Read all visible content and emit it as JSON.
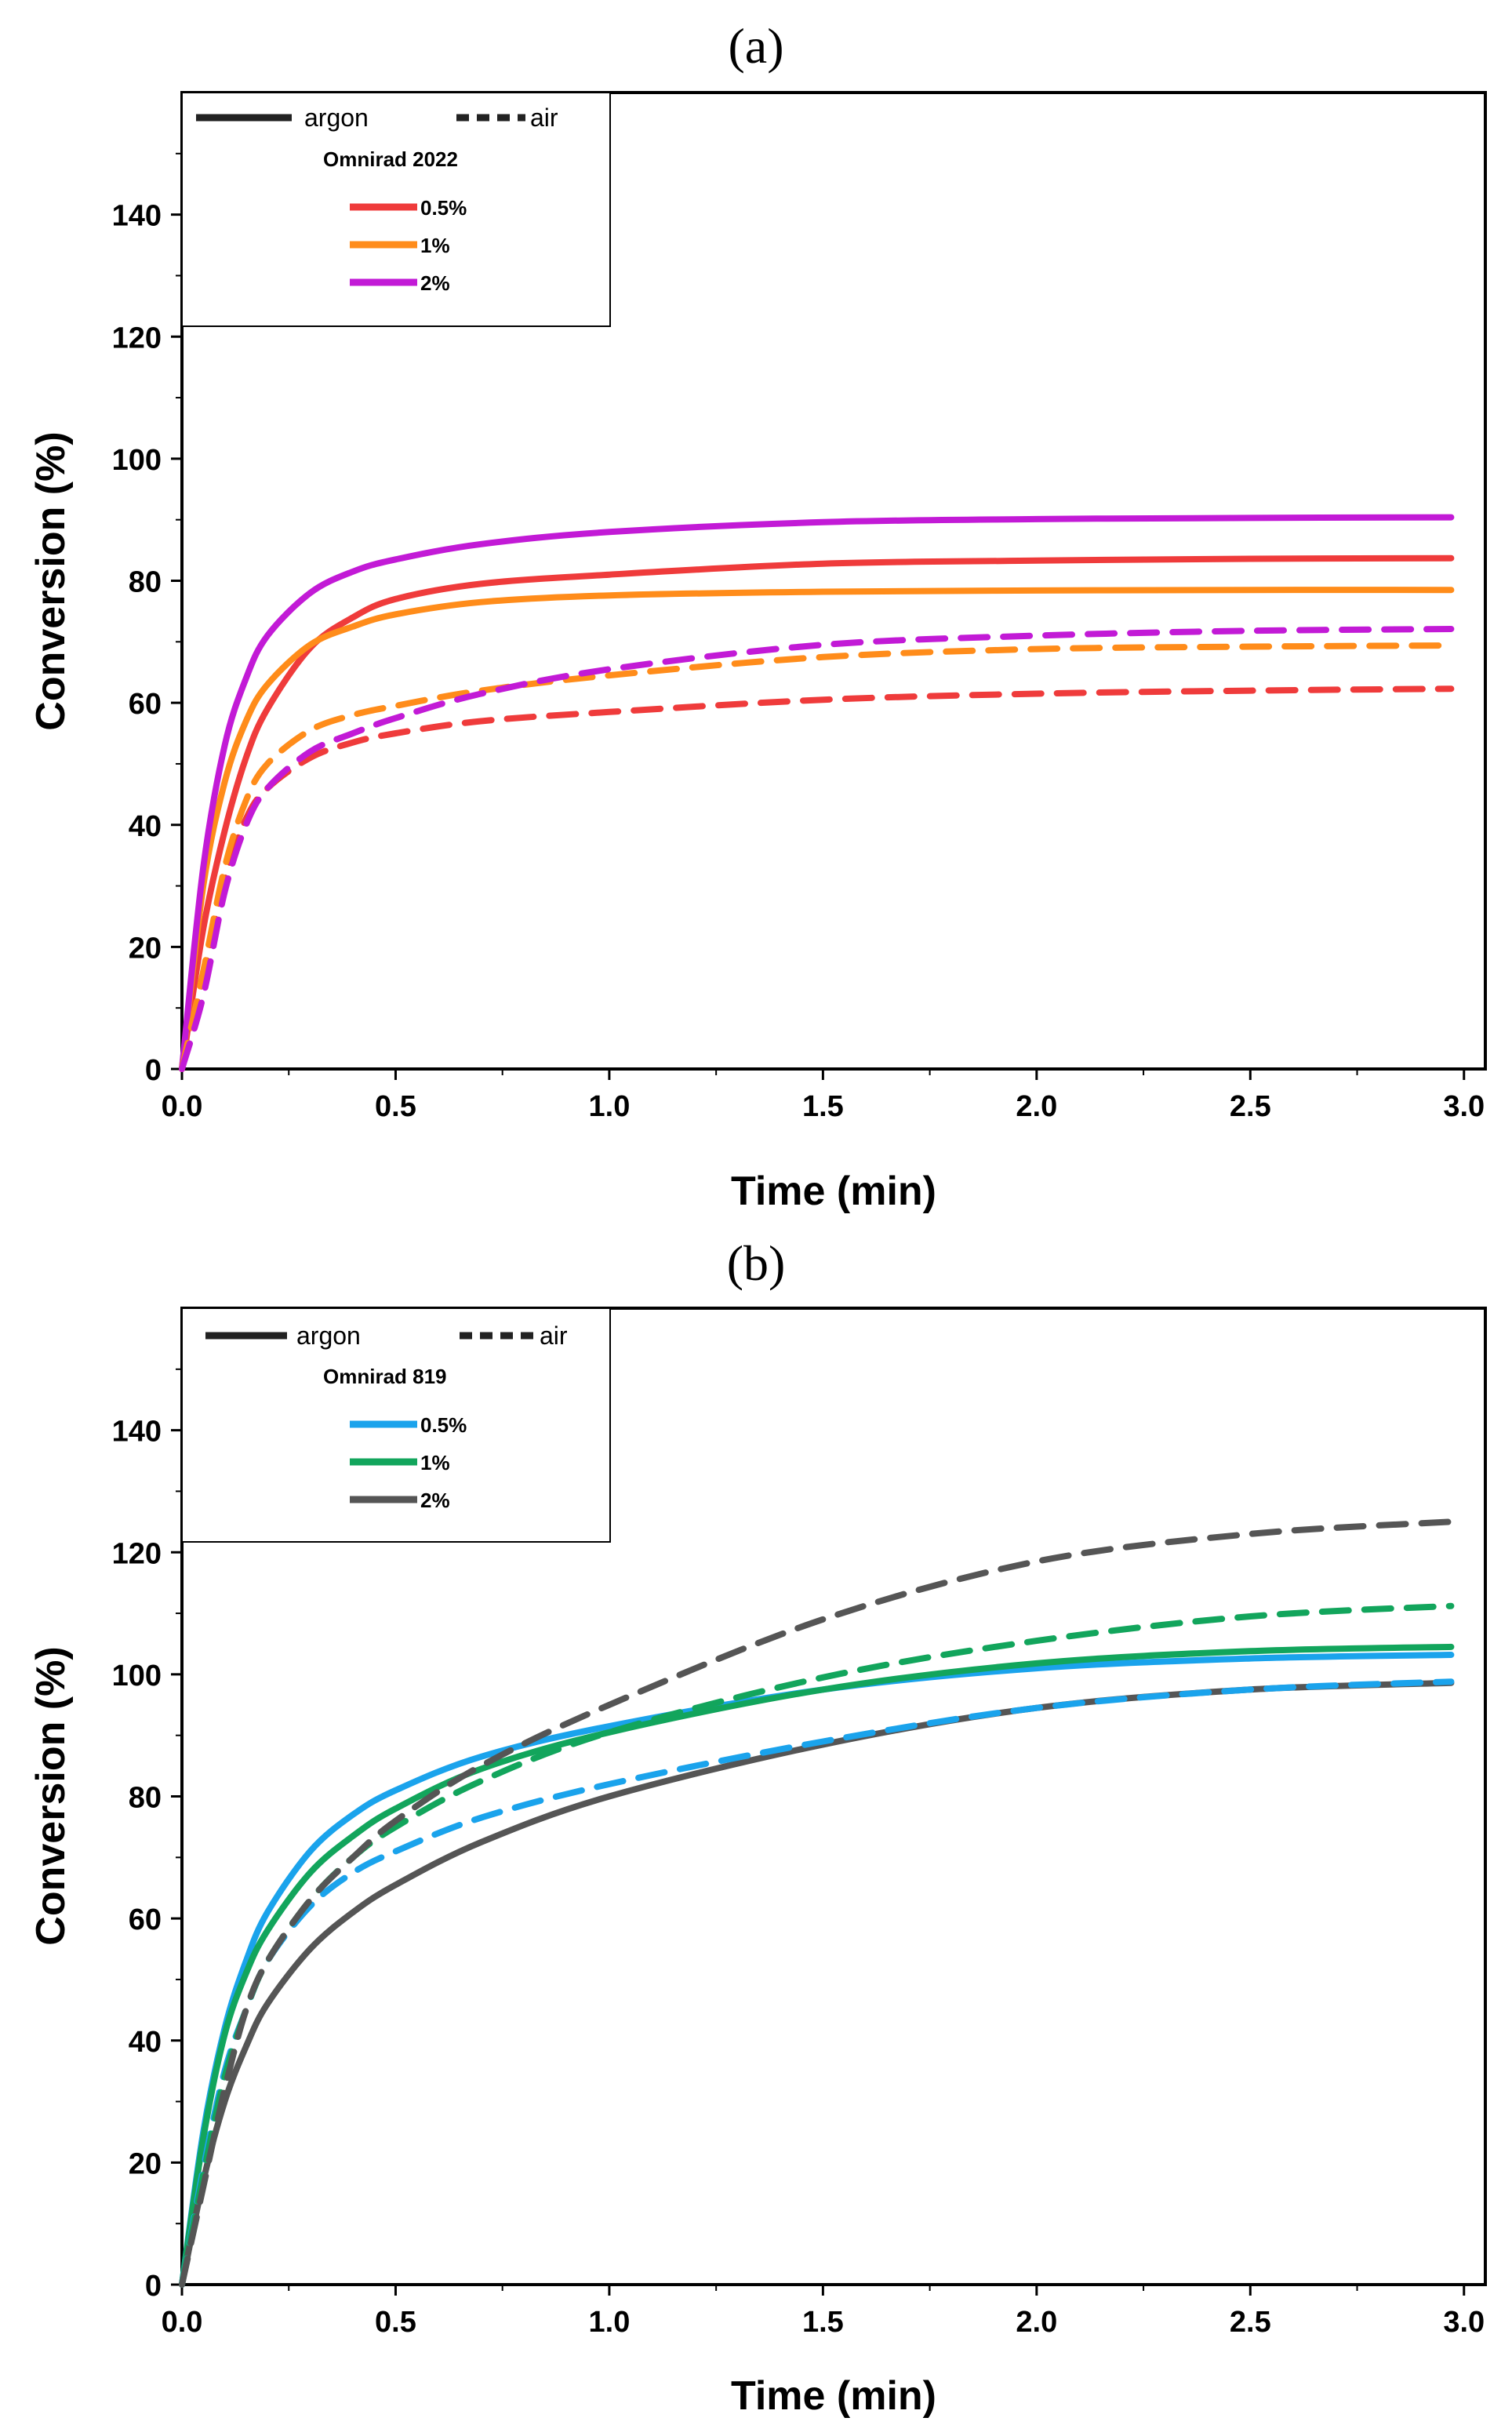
{
  "chart_data": [
    {
      "type": "line",
      "panel_label": "(a)",
      "xlabel": "Time (min)",
      "ylabel": "Conversion (%)",
      "xlim": [
        0.0,
        3.05
      ],
      "ylim": [
        0,
        160
      ],
      "xticks": [
        0.0,
        0.5,
        1.0,
        1.5,
        2.0,
        2.5,
        3.0
      ],
      "xtick_labels": [
        "0.0",
        "0.5",
        "1.0",
        "1.5",
        "2.0",
        "2.5",
        "3.0"
      ],
      "yticks": [
        0,
        20,
        40,
        60,
        80,
        100,
        120,
        140
      ],
      "ytick_labels": [
        "0",
        "20",
        "40",
        "60",
        "80",
        "100",
        "120",
        "140"
      ],
      "legend": {
        "style_entries": [
          {
            "label": "argon",
            "dash": "solid"
          },
          {
            "label": "air",
            "dash": "dashed"
          }
        ],
        "title": "Omnirad 2022",
        "entries": [
          {
            "label": "0.5%",
            "color": "#ef3b3b"
          },
          {
            "label": "1%",
            "color": "#ff8c1a"
          },
          {
            "label": "2%",
            "color": "#c21ad6"
          }
        ]
      },
      "series": [
        {
          "name": "0.5% argon",
          "color": "#ef3b3b",
          "dash": "solid",
          "x": [
            0,
            0.05,
            0.1,
            0.15,
            0.2,
            0.3,
            0.4,
            0.5,
            0.7,
            1.0,
            1.5,
            2.0,
            2.5,
            2.97
          ],
          "y": [
            0,
            23,
            39,
            51,
            59,
            69,
            74,
            77,
            79.5,
            81,
            82.8,
            83.3,
            83.6,
            83.7
          ]
        },
        {
          "name": "1% argon",
          "color": "#ff8c1a",
          "dash": "solid",
          "x": [
            0,
            0.05,
            0.1,
            0.15,
            0.2,
            0.3,
            0.4,
            0.5,
            0.7,
            1.0,
            1.5,
            2.0,
            2.5,
            2.97
          ],
          "y": [
            0,
            30,
            47,
            57,
            63,
            69.5,
            72.5,
            74.5,
            76.5,
            77.6,
            78.2,
            78.4,
            78.5,
            78.5
          ]
        },
        {
          "name": "2% argon",
          "color": "#c21ad6",
          "dash": "solid",
          "x": [
            0,
            0.05,
            0.1,
            0.15,
            0.2,
            0.3,
            0.4,
            0.5,
            0.7,
            1.0,
            1.5,
            2.0,
            2.5,
            2.97
          ],
          "y": [
            0,
            33,
            53,
            64,
            71,
            78,
            81.5,
            83.5,
            86,
            88,
            89.6,
            90.1,
            90.3,
            90.4
          ]
        },
        {
          "name": "0.5% air",
          "color": "#ef3b3b",
          "dash": "dashed",
          "x": [
            0,
            0.05,
            0.1,
            0.15,
            0.2,
            0.3,
            0.4,
            0.5,
            0.7,
            1.0,
            1.5,
            2.0,
            2.5,
            2.97
          ],
          "y": [
            0,
            15,
            31,
            41,
            46,
            51,
            53.5,
            55,
            57,
            58.5,
            60.5,
            61.5,
            62,
            62.3
          ]
        },
        {
          "name": "1% air",
          "color": "#ff8c1a",
          "dash": "dashed",
          "x": [
            0,
            0.05,
            0.1,
            0.15,
            0.2,
            0.3,
            0.4,
            0.5,
            0.7,
            1.0,
            1.5,
            2.0,
            2.5,
            2.97
          ],
          "y": [
            0,
            16,
            33,
            44,
            50,
            55.5,
            58,
            59.5,
            62,
            64.5,
            67.5,
            68.8,
            69.2,
            69.4
          ]
        },
        {
          "name": "2% air",
          "color": "#c21ad6",
          "dash": "dashed",
          "x": [
            0,
            0.05,
            0.1,
            0.15,
            0.2,
            0.3,
            0.4,
            0.5,
            0.7,
            1.0,
            1.5,
            2.0,
            2.5,
            2.97
          ],
          "y": [
            0,
            12,
            29,
            40,
            46,
            52,
            55,
            57.5,
            61.5,
            65.5,
            69.5,
            71,
            71.8,
            72.1
          ]
        }
      ]
    },
    {
      "type": "line",
      "panel_label": "(b)",
      "xlabel": "Time (min)",
      "ylabel": "Conversion (%)",
      "xlim": [
        0.0,
        3.05
      ],
      "ylim": [
        0,
        160
      ],
      "xticks": [
        0.0,
        0.5,
        1.0,
        1.5,
        2.0,
        2.5,
        3.0
      ],
      "xtick_labels": [
        "0.0",
        "0.5",
        "1.0",
        "1.5",
        "2.0",
        "2.5",
        "3.0"
      ],
      "yticks": [
        0,
        20,
        40,
        60,
        80,
        100,
        120,
        140
      ],
      "ytick_labels": [
        "0",
        "20",
        "40",
        "60",
        "80",
        "100",
        "120",
        "140"
      ],
      "legend": {
        "style_entries": [
          {
            "label": "argon",
            "dash": "solid"
          },
          {
            "label": "air",
            "dash": "dashed"
          }
        ],
        "title": "Omnirad 819",
        "entries": [
          {
            "label": "0.5%",
            "color": "#1aa3ec"
          },
          {
            "label": "1%",
            "color": "#12a55c"
          },
          {
            "label": "2%",
            "color": "#555555"
          }
        ]
      },
      "series": [
        {
          "name": "0.5% argon",
          "color": "#1aa3ec",
          "dash": "solid",
          "x": [
            0,
            0.05,
            0.1,
            0.15,
            0.2,
            0.3,
            0.4,
            0.5,
            0.7,
            1.0,
            1.5,
            2.0,
            2.5,
            2.97
          ],
          "y": [
            0,
            25,
            42,
            53,
            61,
            71,
            77,
            81,
            86.5,
            91.5,
            97.5,
            101,
            102.6,
            103.2
          ]
        },
        {
          "name": "1% argon",
          "color": "#12a55c",
          "dash": "solid",
          "x": [
            0,
            0.05,
            0.1,
            0.15,
            0.2,
            0.3,
            0.4,
            0.5,
            0.7,
            1.0,
            1.5,
            2.0,
            2.5,
            2.97
          ],
          "y": [
            0,
            24,
            41,
            51,
            58,
            67.5,
            73.5,
            78,
            84.5,
            90.5,
            97.5,
            101.8,
            103.8,
            104.5
          ]
        },
        {
          "name": "2% argon",
          "color": "#555555",
          "dash": "solid",
          "x": [
            0,
            0.05,
            0.1,
            0.15,
            0.2,
            0.3,
            0.4,
            0.5,
            0.7,
            1.0,
            1.5,
            2.0,
            2.5,
            2.97
          ],
          "y": [
            0,
            17,
            30,
            39,
            46,
            55,
            61,
            65.5,
            72.5,
            80,
            88.5,
            94.5,
            97.5,
            98.6
          ]
        },
        {
          "name": "0.5% air",
          "color": "#1aa3ec",
          "dash": "dashed",
          "x": [
            0,
            0.05,
            0.1,
            0.15,
            0.2,
            0.3,
            0.4,
            0.5,
            0.7,
            1.0,
            1.5,
            2.0,
            2.5,
            2.97
          ],
          "y": [
            0,
            19,
            35,
            45,
            53,
            62,
            67.5,
            71,
            76.5,
            82,
            89,
            94.5,
            97.5,
            98.8
          ]
        },
        {
          "name": "1% air",
          "color": "#12a55c",
          "dash": "dashed",
          "x": [
            0,
            0.05,
            0.1,
            0.15,
            0.2,
            0.3,
            0.4,
            0.5,
            0.7,
            1.0,
            1.5,
            2.0,
            2.5,
            2.97
          ],
          "y": [
            0,
            18,
            34,
            45,
            53,
            63,
            70,
            75,
            82.5,
            90.5,
            99.5,
            105.5,
            109.5,
            111.2
          ]
        },
        {
          "name": "2% air",
          "color": "#555555",
          "dash": "dashed",
          "x": [
            0,
            0.05,
            0.1,
            0.15,
            0.2,
            0.3,
            0.4,
            0.5,
            0.7,
            1.0,
            1.5,
            2.0,
            2.5,
            2.97
          ],
          "y": [
            0,
            16,
            32,
            45,
            53,
            63,
            70,
            76,
            85,
            95,
            109,
            118.5,
            123,
            125
          ]
        }
      ]
    }
  ]
}
